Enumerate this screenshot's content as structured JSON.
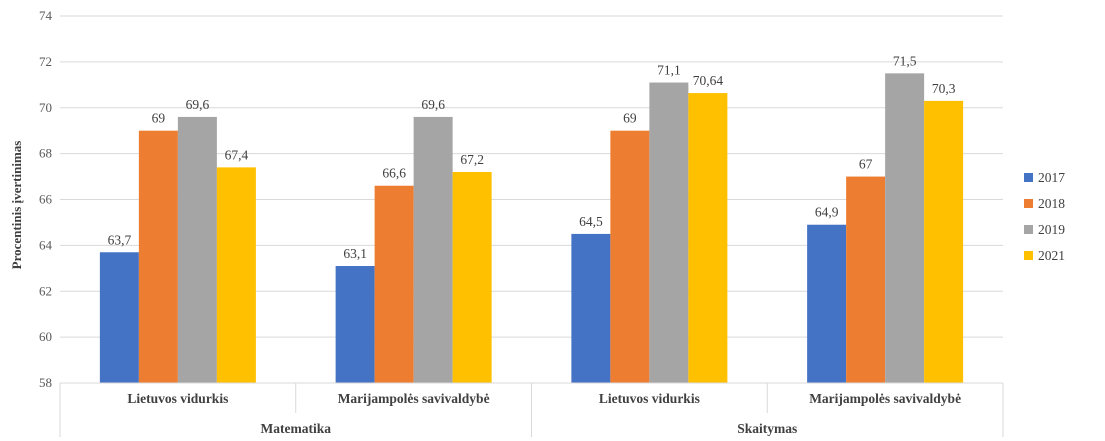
{
  "chart_data": {
    "type": "bar",
    "title": "",
    "ylabel": "Procentinis įvertinimas",
    "xlabel": "",
    "ylim": [
      58,
      74
    ],
    "ytick_step": 2,
    "grid": true,
    "legend_position": "right",
    "groups": [
      {
        "label": "Matematika",
        "categories": [
          "Lietuvos vidurkis",
          "Marijampolės savivaldybė"
        ]
      },
      {
        "label": "Skaitymas",
        "categories": [
          "Lietuvos vidurkis",
          "Marijampolės savivaldybė"
        ]
      }
    ],
    "series": [
      {
        "name": "2017",
        "color": "#4472C4",
        "values": [
          63.7,
          63.1,
          64.5,
          64.9
        ],
        "labels": [
          "63,7",
          "63,1",
          "64,5",
          "64,9"
        ]
      },
      {
        "name": "2018",
        "color": "#ED7D31",
        "values": [
          69,
          66.6,
          69,
          67
        ],
        "labels": [
          "69",
          "66,6",
          "69",
          "67"
        ]
      },
      {
        "name": "2019",
        "color": "#A5A5A5",
        "values": [
          69.6,
          69.6,
          71.1,
          71.5
        ],
        "labels": [
          "69,6",
          "69,6",
          "71,1",
          "71,5"
        ]
      },
      {
        "name": "2021",
        "color": "#FFC000",
        "values": [
          67.4,
          67.2,
          70.64,
          70.3
        ],
        "labels": [
          "67,4",
          "67,2",
          "70,64",
          "70,3"
        ]
      }
    ]
  }
}
